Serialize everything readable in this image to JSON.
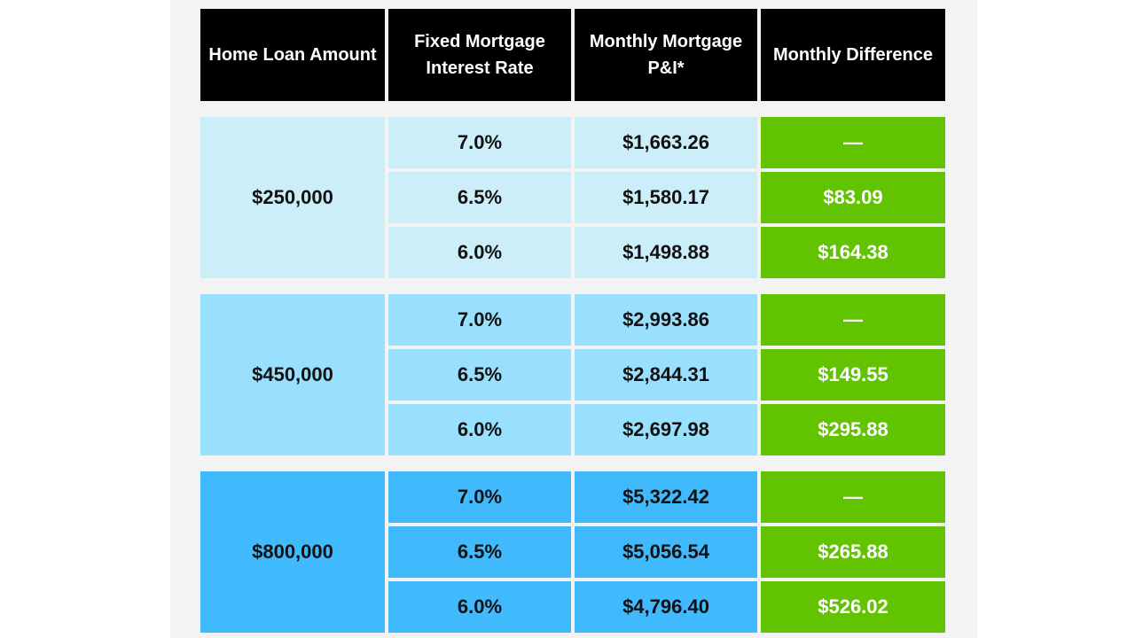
{
  "colors": {
    "header_bg": "#000000",
    "header_text": "#ffffff",
    "group_bg": [
      "#cceef9",
      "#99e0fe",
      "#40b9fd"
    ],
    "difference_bg": "#62c300",
    "difference_text": "#ffffff",
    "body_text": "#111111"
  },
  "chart_data": {
    "type": "table",
    "columns": [
      "Home Loan Amount",
      "Fixed Mortgage Interest Rate",
      "Monthly Mortgage P&I*",
      "Monthly Difference"
    ],
    "groups": [
      {
        "loan_amount": "$250,000",
        "rows": [
          {
            "rate": "7.0%",
            "payment": "$1,663.26",
            "difference": "—"
          },
          {
            "rate": "6.5%",
            "payment": "$1,580.17",
            "difference": "$83.09"
          },
          {
            "rate": "6.0%",
            "payment": "$1,498.88",
            "difference": "$164.38"
          }
        ]
      },
      {
        "loan_amount": "$450,000",
        "rows": [
          {
            "rate": "7.0%",
            "payment": "$2,993.86",
            "difference": "—"
          },
          {
            "rate": "6.5%",
            "payment": "$2,844.31",
            "difference": "$149.55"
          },
          {
            "rate": "6.0%",
            "payment": "$2,697.98",
            "difference": "$295.88"
          }
        ]
      },
      {
        "loan_amount": "$800,000",
        "rows": [
          {
            "rate": "7.0%",
            "payment": "$5,322.42",
            "difference": "—"
          },
          {
            "rate": "6.5%",
            "payment": "$5,056.54",
            "difference": "$265.88"
          },
          {
            "rate": "6.0%",
            "payment": "$4,796.40",
            "difference": "$526.02"
          }
        ]
      }
    ]
  }
}
